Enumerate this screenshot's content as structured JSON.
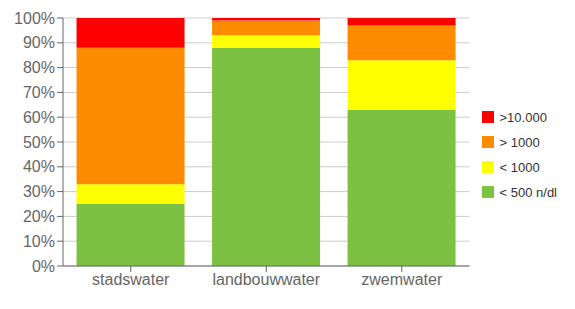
{
  "chart_data": {
    "type": "bar",
    "stacked": true,
    "categories": [
      "stadswater",
      "landbouwwater",
      "zwemwater"
    ],
    "series": [
      {
        "name": "< 500 n/dl",
        "color": "#7DC142",
        "values": [
          25,
          88,
          63
        ]
      },
      {
        "name": "< 1000",
        "color": "#FFFF00",
        "values": [
          8,
          5,
          20
        ]
      },
      {
        "name": "> 1000",
        "color": "#FF8C00",
        "values": [
          55,
          6,
          14
        ]
      },
      {
        "name": ">10.000",
        "color": "#FF0000",
        "values": [
          12,
          1,
          3
        ]
      }
    ],
    "ylim": [
      0,
      100
    ],
    "yticks": [
      {
        "value": 0,
        "label": "0%"
      },
      {
        "value": 10,
        "label": "10%"
      },
      {
        "value": 20,
        "label": "20%"
      },
      {
        "value": 30,
        "label": "30%"
      },
      {
        "value": 40,
        "label": "40%"
      },
      {
        "value": 50,
        "label": "50%"
      },
      {
        "value": 60,
        "label": "60%"
      },
      {
        "value": 70,
        "label": "70%"
      },
      {
        "value": 80,
        "label": "80%"
      },
      {
        "value": 90,
        "label": "90%"
      },
      {
        "value": 100,
        "label": "100%"
      }
    ],
    "grid": true,
    "legend": "right"
  }
}
